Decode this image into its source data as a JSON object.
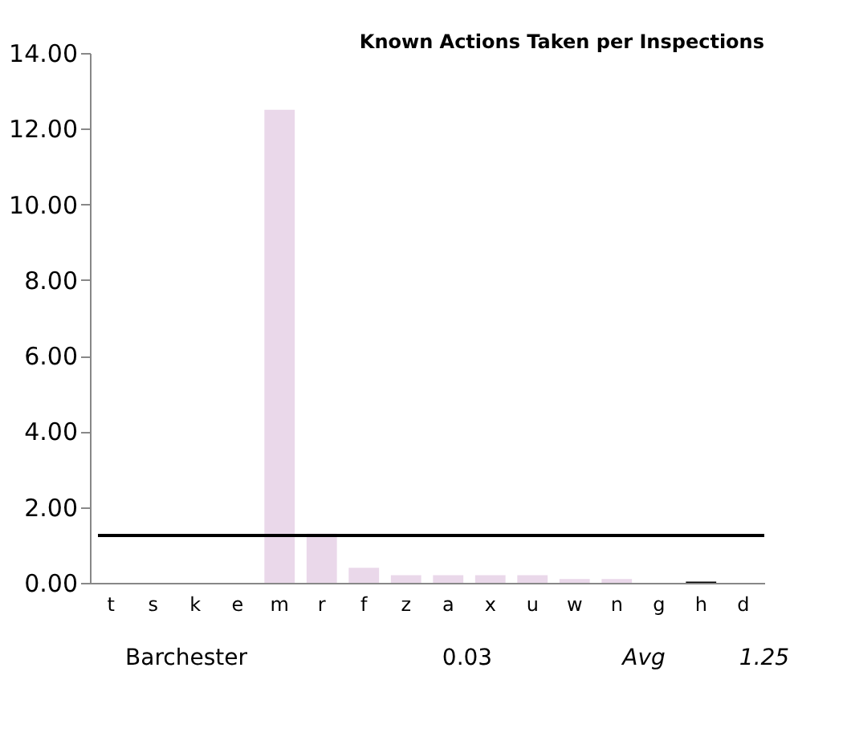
{
  "chart_data": {
    "type": "bar",
    "title": "Known Actions Taken per Inspections",
    "categories": [
      "t",
      "s",
      "k",
      "e",
      "m",
      "r",
      "f",
      "z",
      "a",
      "x",
      "u",
      "w",
      "n",
      "g",
      "h",
      "d"
    ],
    "values": [
      0,
      0,
      0,
      0,
      12.5,
      1.3,
      0.4,
      0.2,
      0.2,
      0.2,
      0.2,
      0.1,
      0.1,
      0,
      0.03,
      0
    ],
    "colors": [
      "#ead8ea",
      "#ead8ea",
      "#ead8ea",
      "#ead8ea",
      "#ead8ea",
      "#ead8ea",
      "#ead8ea",
      "#ead8ea",
      "#ead8ea",
      "#ead8ea",
      "#ead8ea",
      "#ead8ea",
      "#ead8ea",
      "#ead8ea",
      "#000000",
      "#ead8ea"
    ],
    "ylim": [
      0,
      14
    ],
    "yticks": [
      {
        "value": 0,
        "label": "0.00"
      },
      {
        "value": 2,
        "label": "2.00"
      },
      {
        "value": 4,
        "label": "4.00"
      },
      {
        "value": 6,
        "label": "6.00"
      },
      {
        "value": 8,
        "label": "8.00"
      },
      {
        "value": 10,
        "label": "10.00"
      },
      {
        "value": 12,
        "label": "12.00"
      },
      {
        "value": 14,
        "label": "14.00"
      }
    ],
    "ref_lines": [
      {
        "axis": "y",
        "value": 1.25,
        "color": "#000000"
      }
    ],
    "annotations": [
      "Barchester",
      "0.03",
      "Avg",
      "1.25"
    ],
    "grid": false
  }
}
